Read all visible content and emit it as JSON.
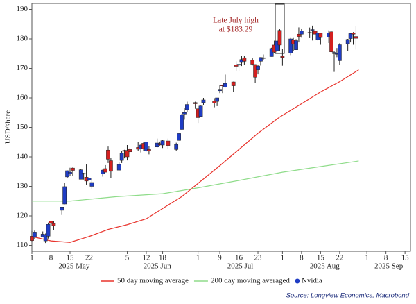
{
  "chart_data": {
    "type": "candlestick",
    "name": "Nvidia",
    "y_label": "USD/share",
    "ylim": [
      108,
      192
    ],
    "yticks": [
      110,
      120,
      130,
      140,
      150,
      160,
      170,
      180,
      190
    ],
    "xlim": [
      "2025-05-01",
      "2025-09-17"
    ],
    "xticks": [
      {
        "value": "2025-05-01",
        "label": "1"
      },
      {
        "value": "2025-05-08",
        "label": "8"
      },
      {
        "value": "2025-05-15",
        "label": "15"
      },
      {
        "value": "2025-05-22",
        "label": "22"
      },
      {
        "value": "2025-06-05",
        "label": "5"
      },
      {
        "value": "2025-06-12",
        "label": "12"
      },
      {
        "value": "2025-06-18",
        "label": "18"
      },
      {
        "value": "2025-07-01",
        "label": "1"
      },
      {
        "value": "2025-07-09",
        "label": "9"
      },
      {
        "value": "2025-07-16",
        "label": "16"
      },
      {
        "value": "2025-07-23",
        "label": "23"
      },
      {
        "value": "2025-08-01",
        "label": "1"
      },
      {
        "value": "2025-08-08",
        "label": "8"
      },
      {
        "value": "2025-08-15",
        "label": "15"
      },
      {
        "value": "2025-08-22",
        "label": "22"
      },
      {
        "value": "2025-09-01",
        "label": "1"
      },
      {
        "value": "2025-09-08",
        "label": "8"
      },
      {
        "value": "2025-09-15",
        "label": "15"
      }
    ],
    "x_groups": [
      "2025 May",
      "2025 Jun",
      "2025 Jul",
      "2025 Aug",
      "2025 Sep"
    ],
    "up_color": "#1f3cc4",
    "down_color": "#d42020",
    "x": [
      "2025-05-01",
      "2025-05-02",
      "2025-05-05",
      "2025-05-06",
      "2025-05-07",
      "2025-05-08",
      "2025-05-09",
      "2025-05-12",
      "2025-05-13",
      "2025-05-14",
      "2025-05-15",
      "2025-05-16",
      "2025-05-19",
      "2025-05-20",
      "2025-05-21",
      "2025-05-22",
      "2025-05-23",
      "2025-05-27",
      "2025-05-28",
      "2025-05-29",
      "2025-05-30",
      "2025-06-02",
      "2025-06-03",
      "2025-06-04",
      "2025-06-05",
      "2025-06-06",
      "2025-06-09",
      "2025-06-10",
      "2025-06-11",
      "2025-06-12",
      "2025-06-13",
      "2025-06-16",
      "2025-06-17",
      "2025-06-18",
      "2025-06-20",
      "2025-06-23",
      "2025-06-24",
      "2025-06-25",
      "2025-06-26",
      "2025-06-27",
      "2025-06-30",
      "2025-07-01",
      "2025-07-02",
      "2025-07-03",
      "2025-07-07",
      "2025-07-08",
      "2025-07-09",
      "2025-07-10",
      "2025-07-11",
      "2025-07-14",
      "2025-07-15",
      "2025-07-16",
      "2025-07-17",
      "2025-07-18",
      "2025-07-21",
      "2025-07-22",
      "2025-07-23",
      "2025-07-24",
      "2025-07-25",
      "2025-07-28",
      "2025-07-29",
      "2025-07-30",
      "2025-07-31",
      "2025-08-01",
      "2025-08-04",
      "2025-08-05",
      "2025-08-06",
      "2025-08-07",
      "2025-08-08",
      "2025-08-11",
      "2025-08-12",
      "2025-08-13",
      "2025-08-14",
      "2025-08-15",
      "2025-08-18",
      "2025-08-19",
      "2025-08-20",
      "2025-08-21",
      "2025-08-22",
      "2025-08-25",
      "2025-08-26",
      "2025-08-27",
      "2025-08-28"
    ],
    "open": [
      113.1,
      112.9,
      112.9,
      111.5,
      113.1,
      118.2,
      117.4,
      121.9,
      124.0,
      133.2,
      134.3,
      136.2,
      132.4,
      134.3,
      133.1,
      132.2,
      130.0,
      134.2,
      136.0,
      142.3,
      138.7,
      135.5,
      138.8,
      142.2,
      142.2,
      142.5,
      143.2,
      142.7,
      144.6,
      141.97,
      142.5,
      143.35,
      144.5,
      144.0,
      145.4,
      142.5,
      145.6,
      149.3,
      154.5,
      156.0,
      158.4,
      156.3,
      153.7,
      158.4,
      159.0,
      158.8,
      162.4,
      164.3,
      163.6,
      165.4,
      171.2,
      171.1,
      172.0,
      173.6,
      172.75,
      171.3,
      169.5,
      172.4,
      173.6,
      174.0,
      177.9,
      176.0,
      182.9,
      174.1,
      175.2,
      179.6,
      176.3,
      181.6,
      181.6,
      182.2,
      182.96,
      182.6,
      179.75,
      181.9,
      180.6,
      182.4,
      175.0,
      174.8,
      172.6,
      178.35,
      180.1,
      181.98,
      180.8
    ],
    "high": [
      114.9,
      115.0,
      114.7,
      114.0,
      117.7,
      118.7,
      118.2,
      123.0,
      131.2,
      135.4,
      136.3,
      136.4,
      135.9,
      134.6,
      137.4,
      134.3,
      132.7,
      135.7,
      137.2,
      143.5,
      139.6,
      138.1,
      142.0,
      142.4,
      144.0,
      143.1,
      145.0,
      144.3,
      144.99,
      145.0,
      143.6,
      146.2,
      145.2,
      145.7,
      146.2,
      144.8,
      147.96,
      154.5,
      156.7,
      158.7,
      158.7,
      157.2,
      157.35,
      160.0,
      159.9,
      160.0,
      164.4,
      164.5,
      167.9,
      165.5,
      172.4,
      171.75,
      174.2,
      174.25,
      173.4,
      171.4,
      171.3,
      173.8,
      174.7,
      177.0,
      179.4,
      179.9,
      183.29,
      176.5,
      180.3,
      180.3,
      179.9,
      183.9,
      183.3,
      183.85,
      184.5,
      183.1,
      183.0,
      181.9,
      182.9,
      182.5,
      175.9,
      176.9,
      178.5,
      180.0,
      182.0,
      182.3,
      184.5
    ],
    "low": [
      111.3,
      112.1,
      112.7,
      110.8,
      112.3,
      115.9,
      115.2,
      120.3,
      123.9,
      132.7,
      133.5,
      133.5,
      132.4,
      132.3,
      130.6,
      131.6,
      129.2,
      133.3,
      134.8,
      137.9,
      132.9,
      135.4,
      137.9,
      139.5,
      138.8,
      141.0,
      141.9,
      141.5,
      141.9,
      141.85,
      140.85,
      143.2,
      143.8,
      143.0,
      142.65,
      142.0,
      145.5,
      149.25,
      152.6,
      155.1,
      156.3,
      151.5,
      153.7,
      157.6,
      156.8,
      157.2,
      161.6,
      161.6,
      163.5,
      162.0,
      169.2,
      168.9,
      170.8,
      171.3,
      171.0,
      165.1,
      167.97,
      170.95,
      172.96,
      173.97,
      175.1,
      175.2,
      175.9,
      170.9,
      174.5,
      175.9,
      176.3,
      178.8,
      180.4,
      180.25,
      179.46,
      179.4,
      179.35,
      178.0,
      178.6,
      175.5,
      168.8,
      173.8,
      171.2,
      175.8,
      178.8,
      178.0,
      176.4
    ],
    "close": [
      111.6,
      114.5,
      113.8,
      113.5,
      117.1,
      117.4,
      116.7,
      123.0,
      129.9,
      135.3,
      134.8,
      135.4,
      135.6,
      134.4,
      131.8,
      132.8,
      131.3,
      135.5,
      134.8,
      139.2,
      135.1,
      137.4,
      141.2,
      141.9,
      140.0,
      141.7,
      142.6,
      144.0,
      142.8,
      145.0,
      142.0,
      144.7,
      144.1,
      145.5,
      143.85,
      144.2,
      147.9,
      154.3,
      155.0,
      157.75,
      158.0,
      153.3,
      157.25,
      159.3,
      158.2,
      160.0,
      162.9,
      164.1,
      164.9,
      164.1,
      170.7,
      171.4,
      173.0,
      172.4,
      171.4,
      167.0,
      170.8,
      173.7,
      173.5,
      176.75,
      175.5,
      179.3,
      177.9,
      173.7,
      180.0,
      178.3,
      179.4,
      180.8,
      182.7,
      182.1,
      183.16,
      181.6,
      182.0,
      180.45,
      182.0,
      175.6,
      175.4,
      175.0,
      178.0,
      179.8,
      181.8,
      181.6,
      180.2
    ],
    "lines": [
      {
        "name": "50 day moving average",
        "color": "#e8332c",
        "x": [
          "2025-05-01",
          "2025-05-08",
          "2025-05-15",
          "2025-05-22",
          "2025-05-29",
          "2025-06-05",
          "2025-06-12",
          "2025-06-18",
          "2025-06-25",
          "2025-07-01",
          "2025-07-09",
          "2025-07-16",
          "2025-07-23",
          "2025-07-31",
          "2025-08-08",
          "2025-08-15",
          "2025-08-22",
          "2025-08-29"
        ],
        "values": [
          113,
          111.5,
          111,
          113,
          115.4,
          117,
          119,
          122.5,
          126.5,
          131,
          137,
          142.5,
          148,
          153.5,
          158,
          162,
          165.5,
          169.5
        ]
      },
      {
        "name": "200 day moving averaged",
        "color": "#8fdc8a",
        "x": [
          "2025-05-01",
          "2025-05-15",
          "2025-06-01",
          "2025-06-18",
          "2025-07-01",
          "2025-07-16",
          "2025-08-01",
          "2025-08-15",
          "2025-08-29"
        ],
        "values": [
          125,
          125,
          126.5,
          127.5,
          129.5,
          132,
          134.8,
          136.7,
          138.6
        ]
      }
    ],
    "annotation": [
      "Late July high",
      "at $183.29"
    ],
    "source": "Source: Longview Economics, Macrobond"
  }
}
